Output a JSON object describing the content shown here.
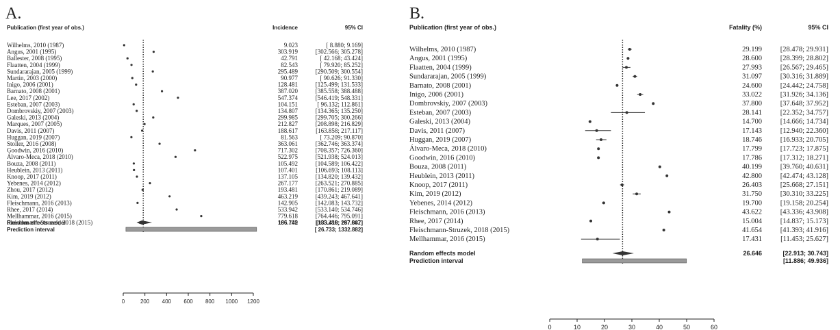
{
  "chart_data": [
    {
      "type": "forest",
      "panel_label": "A.",
      "header_study": "Publication (first year of obs.)",
      "header_effect": "Incidence",
      "header_ci": "95% CI",
      "xlim": [
        0,
        1300
      ],
      "xticks": [
        "0",
        "200",
        "400",
        "600",
        "800",
        "1000",
        "1200"
      ],
      "reference_line": 200,
      "studies": [
        {
          "name": "Wilhelms, 2010 (1987)",
          "est": 9.023,
          "est_text": "9.023",
          "ci_text": "[  8.880;   9.169]"
        },
        {
          "name": "Angus, 2001 (1995)",
          "est": 303.919,
          "est_text": "303.919",
          "ci_text": "[302.566; 305.278]"
        },
        {
          "name": "Ballester, 2008 (1995)",
          "est": 42.791,
          "est_text": "42.791",
          "ci_text": "[ 42.168;  43.424]"
        },
        {
          "name": "Flaatten, 2004 (1999)",
          "est": 82.543,
          "est_text": "82.543",
          "ci_text": "[ 79.920;  85.252]"
        },
        {
          "name": "Sundararajan, 2005 (1999)",
          "est": 295.489,
          "est_text": "295.489",
          "ci_text": "[290.509; 300.554]"
        },
        {
          "name": "Martin, 2003 (2000)",
          "est": 90.977,
          "est_text": "90.977",
          "ci_text": "[ 90.626;  91.330]"
        },
        {
          "name": "Inigo, 2006 (2001)",
          "est": 128.481,
          "est_text": "128.481",
          "ci_text": "[125.499; 131.533]"
        },
        {
          "name": "Barnato, 2008 (2001)",
          "est": 387.02,
          "est_text": "387.020",
          "ci_text": "[385.558; 388.488]"
        },
        {
          "name": "Lee, 2017 (2002)",
          "est": 547.374,
          "est_text": "547.374",
          "ci_text": "[546.419; 548.331]"
        },
        {
          "name": "Esteban, 2007 (2003)",
          "est": 104.151,
          "est_text": "104.151",
          "ci_text": "[ 96.132; 112.861]"
        },
        {
          "name": "Dombrovskiy, 2007 (2003)",
          "est": 134.807,
          "est_text": "134.807",
          "ci_text": "[134.365; 135.250]"
        },
        {
          "name": "Galeski, 2013 (2004)",
          "est": 299.985,
          "est_text": "299.985",
          "ci_text": "[299.705; 300.266]"
        },
        {
          "name": "Marques, 2007 (2005)",
          "est": 212.827,
          "est_text": "212.827",
          "ci_text": "[208.898; 216.829]"
        },
        {
          "name": "Davis, 2011 (2007)",
          "est": 188.617,
          "est_text": "188.617",
          "ci_text": "[163.858; 217.117]"
        },
        {
          "name": "Huggan, 2019 (2007)",
          "est": 81.563,
          "est_text": "81.563",
          "ci_text": "[ 73.209;  90.870]"
        },
        {
          "name": "Stoller, 2016 (2008)",
          "est": 363.061,
          "est_text": "363.061",
          "ci_text": "[362.746; 363.374]"
        },
        {
          "name": "Goodwin, 2016 (2010)",
          "est": 717.302,
          "est_text": "717.302",
          "ci_text": "[708.357; 726.360]"
        },
        {
          "name": "Álvaro-Meca, 2018 (2010)",
          "est": 522.975,
          "est_text": "522.975",
          "ci_text": "[521.938; 524.013]"
        },
        {
          "name": "Bouza, 2008 (2011)",
          "est": 105.492,
          "est_text": "105.492",
          "ci_text": "[104.589; 106.422]"
        },
        {
          "name": "Heublein, 2013 (2011)",
          "est": 107.401,
          "est_text": "107.401",
          "ci_text": "[106.693; 108.113]"
        },
        {
          "name": "Knoop, 2017 (2011)",
          "est": 137.105,
          "est_text": "137.105",
          "ci_text": "[134.820; 139.432]"
        },
        {
          "name": "Yebenes, 2014 (2012)",
          "est": 267.177,
          "est_text": "267.177",
          "ci_text": "[263.521; 270.885]"
        },
        {
          "name": "Zhou, 2017 (2012)",
          "est": 193.481,
          "est_text": "193.481",
          "ci_text": "[170.861; 219.089]"
        },
        {
          "name": "Kim, 2019 (2012)",
          "est": 463.219,
          "est_text": "463.219",
          "ci_text": "[439.243; 467.641]"
        },
        {
          "name": "Fleischmann, 2016 (2013)",
          "est": 142.905,
          "est_text": "142.905",
          "ci_text": "[142.083; 143.732]"
        },
        {
          "name": "Rhee, 2017 (2014)",
          "est": 533.942,
          "est_text": "533.942",
          "ci_text": "[533.140; 534.746]"
        },
        {
          "name": "Mellhammar, 2016 (2015)",
          "est": 779.618,
          "est_text": "779.618",
          "ci_text": "[764.446; 795.091]"
        },
        {
          "name": "Fleischmann-Struzek, 2018 (2015)",
          "est": 166.159,
          "est_text": "166.159",
          "ci_text": "[165.280; 167.042]"
        }
      ],
      "summary": {
        "name": "Random effects model",
        "est": 186.742,
        "lo": 133.418,
        "hi": 287.887,
        "est_text": "186.742",
        "ci_text": "[133.418; 287.887]"
      },
      "prediction": {
        "name": "Prediction interval",
        "lo": 26.733,
        "hi": 1332.882,
        "ci_text": "[ 26.733; 1332.882]"
      }
    },
    {
      "type": "forest",
      "panel_label": "B.",
      "header_study": "Publication (first year of obs.)",
      "header_effect": "Fatality (%)",
      "header_ci": "95% CI",
      "xlim": [
        0,
        60
      ],
      "xticks": [
        "0",
        "10",
        "20",
        "30",
        "40",
        "50",
        "60"
      ],
      "reference_line": 26.6,
      "studies": [
        {
          "name": "Wilhelms, 2010 (1987)",
          "est": 29.199,
          "lo": 28.478,
          "hi": 29.931,
          "est_text": "29.199",
          "ci_text": "[28.478; 29.931]"
        },
        {
          "name": "Angus, 2001 (1995)",
          "est": 28.6,
          "lo": 28.399,
          "hi": 28.802,
          "est_text": "28.600",
          "ci_text": "[28.399; 28.802]"
        },
        {
          "name": "Flaatten, 2004 (1999)",
          "est": 27.993,
          "lo": 26.567,
          "hi": 29.465,
          "est_text": "27.993",
          "ci_text": "[26.567; 29.465]"
        },
        {
          "name": "Sundararajan, 2005 (1999)",
          "est": 31.097,
          "lo": 30.316,
          "hi": 31.889,
          "est_text": "31.097",
          "ci_text": "[30.316; 31.889]"
        },
        {
          "name": "Barnato, 2008 (2001)",
          "est": 24.6,
          "lo": 24.442,
          "hi": 24.758,
          "est_text": "24.600",
          "ci_text": "[24.442; 24.758]"
        },
        {
          "name": "Inigo, 2006 (2001)",
          "est": 33.022,
          "lo": 31.926,
          "hi": 34.136,
          "est_text": "33.022",
          "ci_text": "[31.926; 34.136]"
        },
        {
          "name": "Dombrovskiy, 2007 (2003)",
          "est": 37.8,
          "lo": 37.648,
          "hi": 37.952,
          "est_text": "37.800",
          "ci_text": "[37.648; 37.952]"
        },
        {
          "name": "Esteban, 2007 (2003)",
          "est": 28.141,
          "lo": 22.352,
          "hi": 34.757,
          "est_text": "28.141",
          "ci_text": "[22.352; 34.757]"
        },
        {
          "name": "Galeski, 2013 (2004)",
          "est": 14.7,
          "lo": 14.666,
          "hi": 14.734,
          "est_text": "14.700",
          "ci_text": "[14.666; 14.734]"
        },
        {
          "name": "Davis, 2011 (2007)",
          "est": 17.143,
          "lo": 12.94,
          "hi": 22.36,
          "est_text": "17.143",
          "ci_text": "[12.940; 22.360]"
        },
        {
          "name": "Huggan, 2019 (2007)",
          "est": 18.746,
          "lo": 16.933,
          "hi": 20.705,
          "est_text": "18.746",
          "ci_text": "[16.933; 20.705]"
        },
        {
          "name": "Álvaro-Meca, 2018 (2010)",
          "est": 17.799,
          "lo": 17.723,
          "hi": 17.875,
          "est_text": "17.799",
          "ci_text": "[17.723; 17.875]"
        },
        {
          "name": "Goodwin, 2016 (2010)",
          "est": 17.786,
          "lo": 17.312,
          "hi": 18.271,
          "est_text": "17.786",
          "ci_text": "[17.312; 18.271]"
        },
        {
          "name": "Bouza, 2008 (2011)",
          "est": 40.199,
          "lo": 39.76,
          "hi": 40.631,
          "est_text": "40.199",
          "ci_text": "[39.760; 40.631]"
        },
        {
          "name": "Heublein, 2013 (2011)",
          "est": 42.8,
          "lo": 42.474,
          "hi": 43.128,
          "est_text": "42.800",
          "ci_text": "[42.474; 43.128]"
        },
        {
          "name": "Knoop, 2017 (2011)",
          "est": 26.403,
          "lo": 25.668,
          "hi": 27.151,
          "est_text": "26.403",
          "ci_text": "[25.668; 27.151]"
        },
        {
          "name": "Kim, 2019 (2012)",
          "est": 31.75,
          "lo": 30.31,
          "hi": 33.225,
          "est_text": "31.750",
          "ci_text": "[30.310; 33.225]"
        },
        {
          "name": "Yebenes, 2014 (2012)",
          "est": 19.7,
          "lo": 19.158,
          "hi": 20.254,
          "est_text": "19.700",
          "ci_text": "[19.158; 20.254]"
        },
        {
          "name": "Fleischmann, 2016 (2013)",
          "est": 43.622,
          "lo": 43.336,
          "hi": 43.908,
          "est_text": "43.622",
          "ci_text": "[43.336; 43.908]"
        },
        {
          "name": "Rhee, 2017 (2014)",
          "est": 15.004,
          "lo": 14.837,
          "hi": 15.173,
          "est_text": "15.004",
          "ci_text": "[14.837; 15.173]"
        },
        {
          "name": "Fleischmann-Struzek, 2018 (2015)",
          "est": 41.654,
          "lo": 41.393,
          "hi": 41.916,
          "est_text": "41.654",
          "ci_text": "[41.393; 41.916]"
        },
        {
          "name": "Mellhammar, 2016 (2015)",
          "est": 17.431,
          "lo": 11.453,
          "hi": 25.627,
          "est_text": "17.431",
          "ci_text": "[11.453; 25.627]"
        }
      ],
      "summary": {
        "name": "Random effects model",
        "est": 26.646,
        "lo": 22.913,
        "hi": 30.743,
        "est_text": "26.646",
        "ci_text": "[22.913; 30.743]"
      },
      "prediction": {
        "name": "Prediction interval",
        "lo": 11.886,
        "hi": 49.936,
        "ci_text": "[11.886; 49.936]"
      }
    }
  ]
}
